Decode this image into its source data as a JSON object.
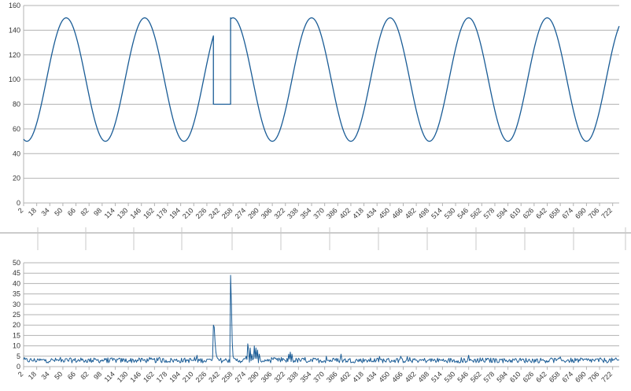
{
  "chart_data": [
    {
      "type": "line",
      "title": "",
      "xlabel": "",
      "ylabel": "",
      "x_range": [
        2,
        730
      ],
      "x_ticks": [
        2,
        18,
        34,
        50,
        66,
        82,
        98,
        114,
        130,
        146,
        162,
        178,
        194,
        210,
        226,
        242,
        258,
        274,
        290,
        306,
        322,
        338,
        354,
        370,
        386,
        402,
        418,
        434,
        450,
        466,
        482,
        498,
        514,
        530,
        546,
        562,
        578,
        594,
        610,
        626,
        642,
        658,
        674,
        690,
        706,
        722
      ],
      "ylim": [
        0,
        160
      ],
      "y_ticks": [
        0,
        20,
        40,
        60,
        80,
        100,
        120,
        140,
        160
      ],
      "grid": "horizontal",
      "legend": "none",
      "series": [
        {
          "color": "#1a5c96",
          "description": "sine wave, min 50, max 150, period 96 samples, peaks near x=54, 150, 258, 354, 450, 546, 642",
          "segments": [
            {
              "x_from": 2,
              "x_to": 234,
              "shape": "sine",
              "center": 100,
              "amplitude": 50,
              "period": 96,
              "peak_x": 54
            },
            {
              "x": [
                234,
                234,
                255,
                255
              ],
              "y": [
                112,
                80,
                80,
                150
              ]
            },
            {
              "x_from": 255,
              "x_to": 730,
              "shape": "sine",
              "center": 100,
              "amplitude": 50,
              "period": 96,
              "peak_x": 258
            }
          ]
        }
      ]
    },
    {
      "type": "line",
      "title": "",
      "xlabel": "",
      "ylabel": "",
      "x_range": [
        2,
        730
      ],
      "x_ticks": [
        2,
        18,
        34,
        50,
        66,
        82,
        98,
        114,
        130,
        146,
        162,
        178,
        194,
        210,
        226,
        242,
        258,
        274,
        290,
        306,
        322,
        338,
        354,
        370,
        386,
        402,
        418,
        434,
        450,
        466,
        482,
        498,
        514,
        530,
        546,
        562,
        578,
        594,
        610,
        626,
        642,
        658,
        674,
        690,
        706,
        722
      ],
      "ylim": [
        0,
        50
      ],
      "y_ticks": [
        0,
        5,
        10,
        15,
        20,
        25,
        30,
        35,
        40,
        45,
        50
      ],
      "grid": "horizontal",
      "legend": "none",
      "series": [
        {
          "color": "#1a5c96",
          "baseline": 3,
          "noise": 1.2,
          "events": [
            {
              "x": 234,
              "y": 20
            },
            {
              "x": 235,
              "y": 19
            },
            {
              "x": 236,
              "y": 12
            },
            {
              "x": 237,
              "y": 7
            },
            {
              "x": 238,
              "y": 5
            },
            {
              "x": 239,
              "y": 4
            },
            {
              "x": 254,
              "y": 2
            },
            {
              "x": 255,
              "y": 44
            },
            {
              "x": 256,
              "y": 30
            },
            {
              "x": 257,
              "y": 12
            },
            {
              "x": 258,
              "y": 5
            },
            {
              "x": 274,
              "y": 5
            },
            {
              "x": 276,
              "y": 11
            },
            {
              "x": 277,
              "y": 8
            },
            {
              "x": 279,
              "y": 9
            },
            {
              "x": 281,
              "y": 6
            },
            {
              "x": 284,
              "y": 10
            },
            {
              "x": 286,
              "y": 9
            },
            {
              "x": 288,
              "y": 8
            },
            {
              "x": 290,
              "y": 6
            },
            {
              "x": 326,
              "y": 6
            },
            {
              "x": 328,
              "y": 7
            },
            {
              "x": 330,
              "y": 6
            },
            {
              "x": 372,
              "y": 5
            },
            {
              "x": 390,
              "y": 6
            }
          ]
        }
      ]
    }
  ],
  "colors": {
    "line": "#1a5c96",
    "grid": "#b3b3b3",
    "text": "#333333"
  }
}
